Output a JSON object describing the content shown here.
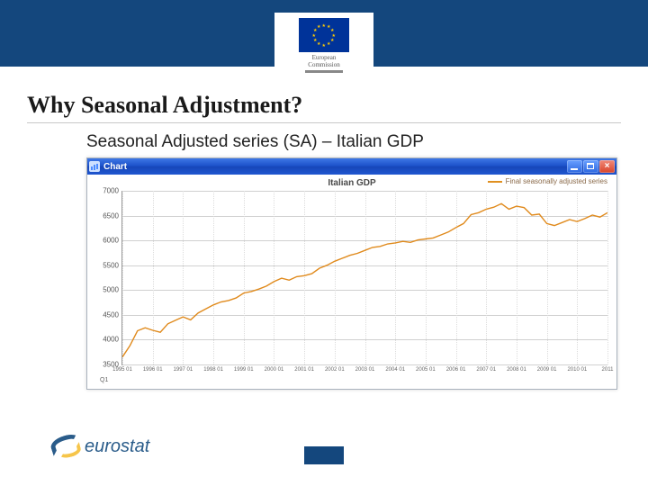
{
  "banner": {
    "bg": "#14477d"
  },
  "ec_logo": {
    "line1": "European",
    "line2": "Commission"
  },
  "page": {
    "title": "Why Seasonal Adjustment?",
    "subtitle": "Seasonal Adjusted series (SA) – Italian GDP"
  },
  "chart_window": {
    "titlebar_text": "Chart",
    "chart_title": "Italian GDP",
    "legend_label": "Final seasonally adjusted series",
    "x_axis_title": "Q1",
    "type": "line",
    "series_color": "#e08a1c",
    "line_width": 1.4,
    "background_color": "#ffffff",
    "grid_color": "#d0d0d0",
    "axis_color": "#999999",
    "ylim": [
      3500,
      7000
    ],
    "yticks": [
      3500,
      4000,
      4500,
      5000,
      5500,
      6000,
      6500,
      7000
    ],
    "xtick_labels": [
      "1995 01",
      "1996 01",
      "1997 01",
      "1998 01",
      "1999 01",
      "2000 01",
      "2001 01",
      "2002 01",
      "2003 01",
      "2004 01",
      "2005 01",
      "2006 01",
      "2007 01",
      "2008 01",
      "2009 01",
      "2010 01",
      "2011"
    ],
    "values": [
      3650,
      3880,
      4180,
      4240,
      4190,
      4150,
      4320,
      4390,
      4460,
      4400,
      4540,
      4620,
      4700,
      4760,
      4790,
      4840,
      4940,
      4970,
      5020,
      5080,
      5170,
      5240,
      5200,
      5270,
      5290,
      5330,
      5440,
      5500,
      5580,
      5640,
      5700,
      5740,
      5800,
      5860,
      5880,
      5930,
      5950,
      5980,
      5960,
      6010,
      6030,
      6050,
      6110,
      6170,
      6260,
      6340,
      6520,
      6560,
      6630,
      6670,
      6740,
      6630,
      6690,
      6660,
      6510,
      6530,
      6340,
      6300,
      6360,
      6420,
      6380,
      6440,
      6510,
      6470,
      6560
    ]
  },
  "eurostat": {
    "text": "eurostat"
  }
}
